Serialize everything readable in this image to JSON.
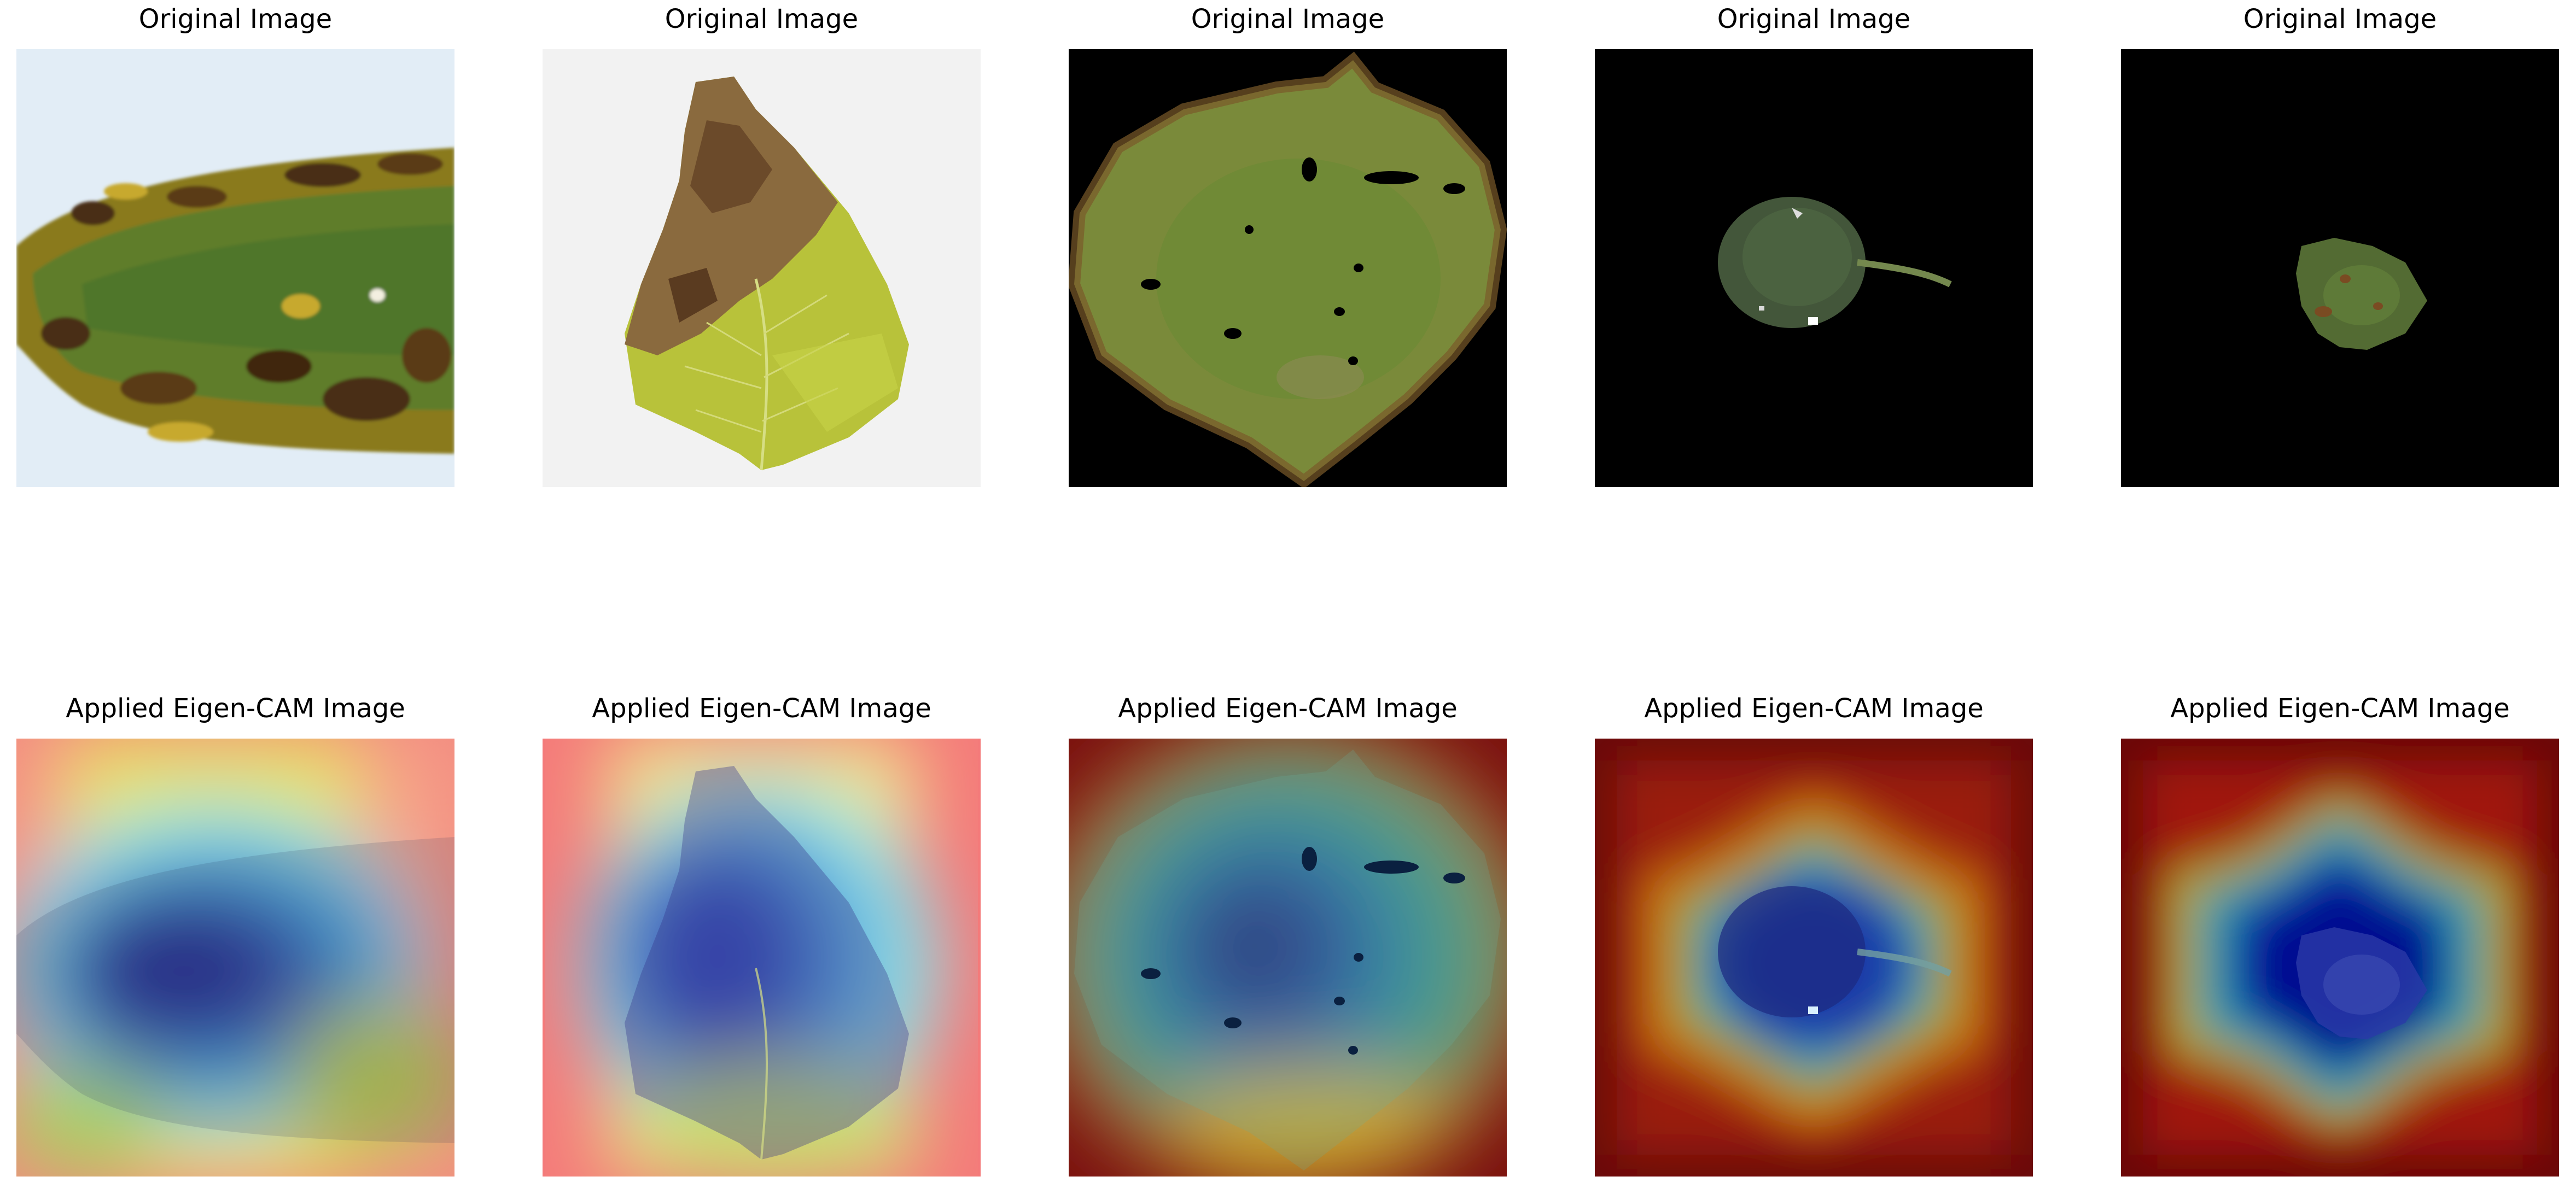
{
  "figure": {
    "rows": [
      {
        "panels": [
          {
            "title": "Original Image"
          },
          {
            "title": "Original Image"
          },
          {
            "title": "Original Image"
          },
          {
            "title": "Original Image"
          },
          {
            "title": "Original Image"
          }
        ]
      },
      {
        "panels": [
          {
            "title": "Applied Eigen-CAM Image"
          },
          {
            "title": "Applied Eigen-CAM Image"
          },
          {
            "title": "Applied Eigen-CAM Image"
          },
          {
            "title": "Applied Eigen-CAM Image"
          },
          {
            "title": "Applied Eigen-CAM Image"
          }
        ]
      }
    ]
  }
}
